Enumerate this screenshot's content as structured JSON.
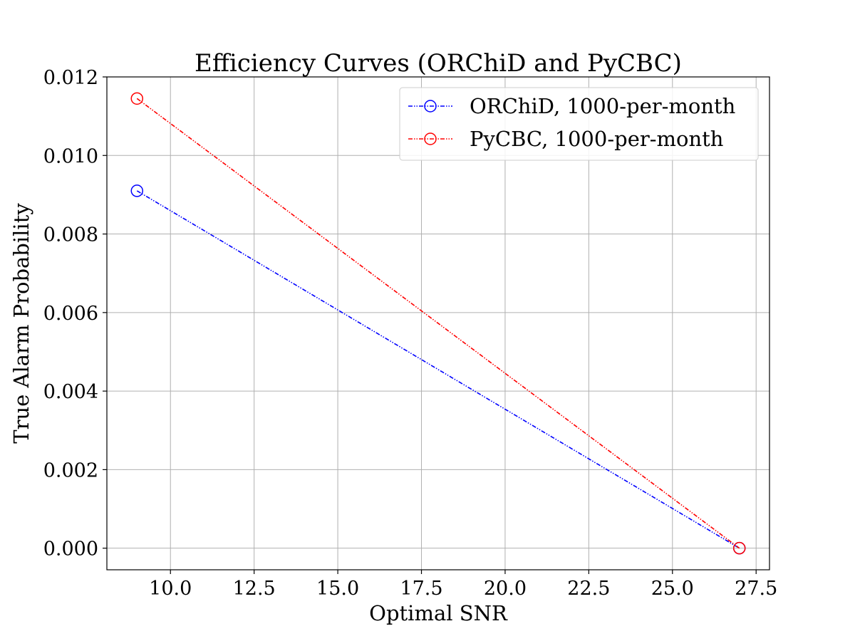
{
  "chart_data": {
    "type": "line",
    "title": "Efficiency Curves (ORChiD and PyCBC)",
    "xlabel": "Optimal SNR",
    "ylabel": "True Alarm Probability",
    "xlim": [
      8.1,
      27.9
    ],
    "ylim": [
      -0.00055,
      0.012
    ],
    "xticks": [
      10.0,
      12.5,
      15.0,
      17.5,
      20.0,
      22.5,
      25.0,
      27.5
    ],
    "xtick_labels": [
      "10.0",
      "12.5",
      "15.0",
      "17.5",
      "20.0",
      "22.5",
      "25.0",
      "27.5"
    ],
    "yticks": [
      0.0,
      0.002,
      0.004,
      0.006,
      0.008,
      0.01,
      0.012
    ],
    "ytick_labels": [
      "0.000",
      "0.002",
      "0.004",
      "0.006",
      "0.008",
      "0.010",
      "0.012"
    ],
    "grid": true,
    "legend_position": "top-right",
    "series": [
      {
        "name": "ORChiD, 1000-per-month",
        "color": "#0000ff",
        "linestyle": "dash-dot-dot",
        "marker": "open-circle",
        "x": [
          9.0,
          27.0
        ],
        "y": [
          0.0091,
          0.0
        ]
      },
      {
        "name": "PyCBC, 1000-per-month",
        "color": "#ff0000",
        "linestyle": "dash-dot-dot",
        "marker": "open-circle",
        "x": [
          9.0,
          27.0
        ],
        "y": [
          0.01145,
          0.0
        ]
      }
    ]
  }
}
